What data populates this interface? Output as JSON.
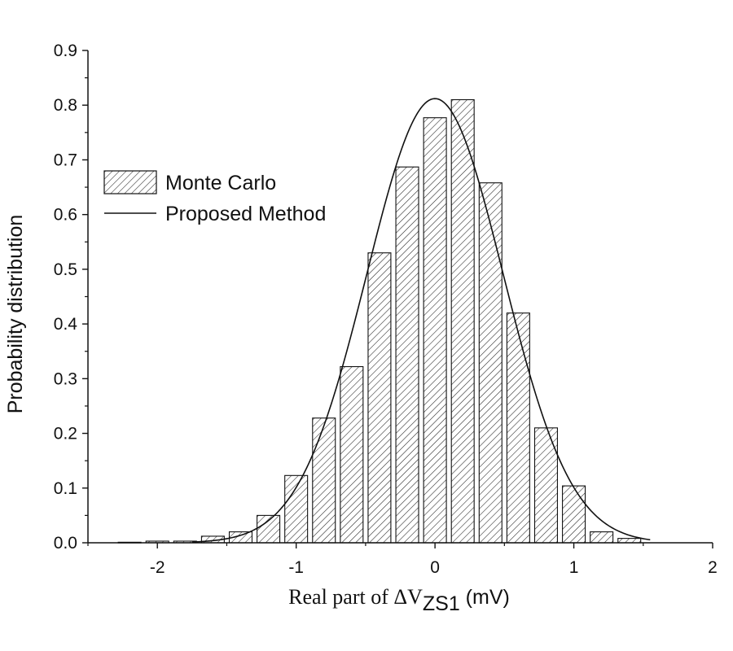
{
  "chart_data": {
    "type": "bar",
    "title": "",
    "xlabel": {
      "prefix": "Real part of ",
      "symbol": "ΔV",
      "subscript": "ZS1",
      "unit": " (mV)"
    },
    "ylabel": "Probability distribution",
    "xlim": [
      -2.5,
      2
    ],
    "ylim": [
      0,
      0.9
    ],
    "xticks": [
      -2,
      -1,
      0,
      1,
      2
    ],
    "xtick_labels": [
      "-2",
      "-1",
      "0",
      "1",
      "2"
    ],
    "yticks": [
      0.0,
      0.1,
      0.2,
      0.3,
      0.4,
      0.5,
      0.6,
      0.7,
      0.8,
      0.9
    ],
    "ytick_labels": [
      "0.0",
      "0.1",
      "0.2",
      "0.3",
      "0.4",
      "0.5",
      "0.6",
      "0.7",
      "0.8",
      "0.9"
    ],
    "bin_width": 0.2,
    "series": [
      {
        "name": "Monte Carlo",
        "kind": "histogram",
        "x": [
          -2.2,
          -2.0,
          -1.8,
          -1.6,
          -1.4,
          -1.2,
          -1.0,
          -0.8,
          -0.6,
          -0.4,
          -0.2,
          0.0,
          0.2,
          0.4,
          0.6,
          0.8,
          1.0,
          1.2,
          1.4
        ],
        "values": [
          0.001,
          0.003,
          0.003,
          0.012,
          0.02,
          0.05,
          0.123,
          0.228,
          0.322,
          0.53,
          0.687,
          0.777,
          0.81,
          0.658,
          0.42,
          0.21,
          0.104,
          0.02,
          0.008
        ]
      },
      {
        "name": "Proposed Method",
        "kind": "line",
        "curve": "normal",
        "mean": 0.0,
        "peak": 0.812,
        "std": 0.49,
        "x_range": [
          -1.75,
          1.55
        ]
      }
    ],
    "legend": {
      "position": "top-left",
      "entries": [
        "Monte Carlo",
        "Proposed Method"
      ]
    }
  }
}
